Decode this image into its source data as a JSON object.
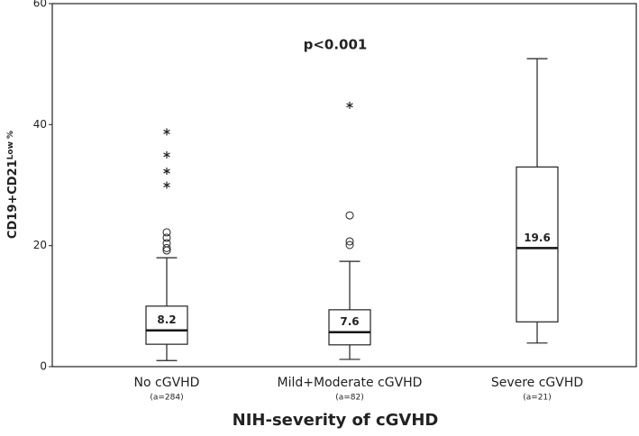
{
  "chart_data": {
    "type": "box",
    "annotation": "p<0.001",
    "x_label": "NIH-severity of cGVHD",
    "y_label": "CD19+CD21",
    "y_label_small": "Low %",
    "categories": [
      "No cGVHD",
      "Mild+Moderate cGVHD",
      "Severe cGVHD"
    ],
    "n_labels": [
      "(a=284)",
      "(a=82)",
      "(a=21)"
    ],
    "boxes": [
      {
        "whisker_low": 1,
        "q1": 3.7,
        "median": 6,
        "q3": 10,
        "whisker_high": 18,
        "label": 8.2,
        "outliers_circle": [
          19.2,
          19.6,
          20.4,
          21.3,
          22.2
        ],
        "outliers_star": [
          30,
          32.3,
          35,
          38.8
        ]
      },
      {
        "whisker_low": 1.2,
        "q1": 3.6,
        "median": 5.7,
        "q3": 9.4,
        "whisker_high": 17.4,
        "label": 7.6,
        "outliers_circle": [
          20.1,
          20.7,
          25
        ],
        "outliers_star": [
          43.2
        ]
      },
      {
        "whisker_low": 3.9,
        "q1": 7.4,
        "median": 19.6,
        "q3": 33,
        "whisker_high": 50.9,
        "label": 19.6,
        "outliers_circle": [],
        "outliers_star": []
      }
    ],
    "color": "#ffffff",
    "ylim": [
      0,
      60
    ],
    "yticks": [
      0,
      20,
      40,
      60
    ],
    "grid": false
  }
}
